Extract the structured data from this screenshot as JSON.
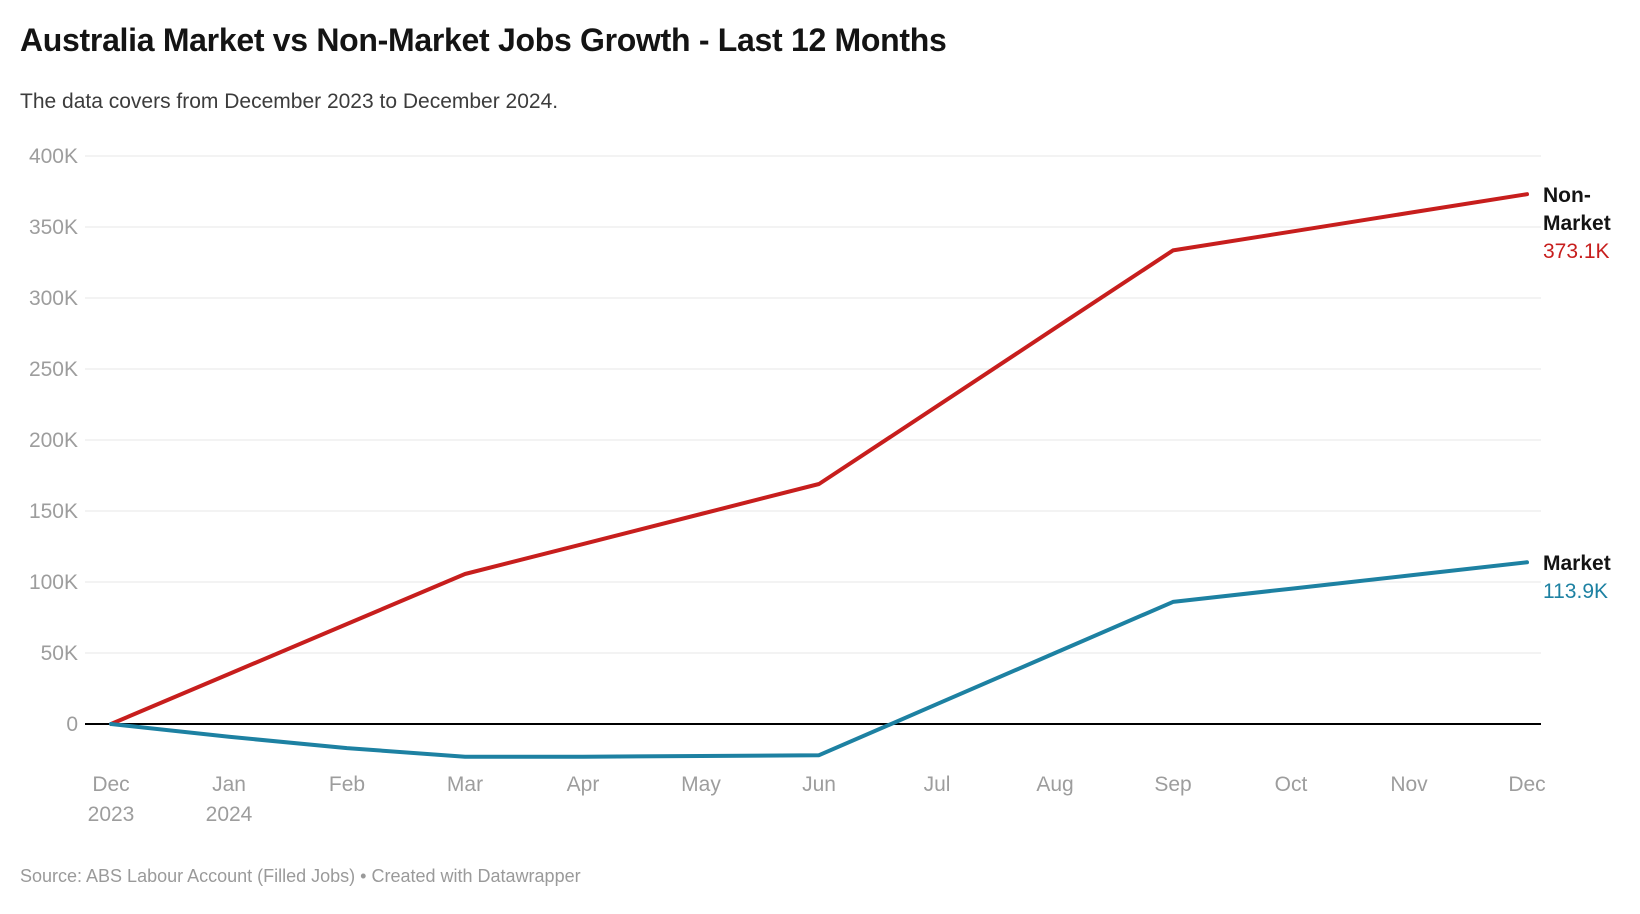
{
  "header": {
    "title": "Australia Market vs Non-Market Jobs Growth - Last 12 Months",
    "subtitle": "The data covers from December 2023 to December 2024."
  },
  "footer": {
    "source": "Source: ABS Labour Account (Filled Jobs) • Created with Datawrapper"
  },
  "chart_data": {
    "type": "line",
    "title": "Australia Market vs Non-Market Jobs Growth - Last 12 Months",
    "unit": "thousands of jobs (K)",
    "grid": true,
    "legend_position": "right-end-labels",
    "ylim": [
      -30,
      400
    ],
    "x_categories": [
      {
        "label": "Dec",
        "sublabel": "2023"
      },
      {
        "label": "Jan",
        "sublabel": "2024"
      },
      {
        "label": "Feb"
      },
      {
        "label": "Mar"
      },
      {
        "label": "Apr"
      },
      {
        "label": "May"
      },
      {
        "label": "Jun"
      },
      {
        "label": "Jul"
      },
      {
        "label": "Aug"
      },
      {
        "label": "Sep"
      },
      {
        "label": "Oct"
      },
      {
        "label": "Nov"
      },
      {
        "label": "Dec"
      }
    ],
    "y_ticks": [
      [
        0,
        "0"
      ],
      [
        50,
        "50K"
      ],
      [
        100,
        "100K"
      ],
      [
        150,
        "150K"
      ],
      [
        200,
        "200K"
      ],
      [
        250,
        "250K"
      ],
      [
        300,
        "300K"
      ],
      [
        350,
        "350K"
      ],
      [
        400,
        "400K"
      ]
    ],
    "series": [
      {
        "name": "Non-Market",
        "color": "#c71e1d",
        "end_label": "373.1K",
        "values": [
          0,
          35.2,
          70.4,
          105.6,
          126.7,
          147.9,
          169.0,
          223.8,
          278.7,
          333.5,
          346.7,
          359.9,
          373.1
        ]
      },
      {
        "name": "Market",
        "color": "#1d81a2",
        "end_label": "113.9K",
        "values": [
          0,
          -9,
          -17,
          -23,
          -23,
          -22.5,
          -22,
          14,
          50,
          86,
          95.3,
          104.6,
          113.9
        ]
      }
    ]
  }
}
